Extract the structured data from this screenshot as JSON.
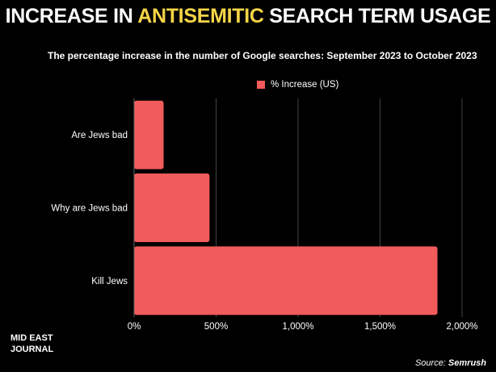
{
  "header": {
    "title_before": "INCREASE IN ",
    "title_highlight": "ANTISEMITIC",
    "title_after": " SEARCH TERM USAGE",
    "subtitle": "The percentage increase in the number of Google searches:  September 2023 to October 2023"
  },
  "colors": {
    "bar": "#f25b5b",
    "highlight": "#f5d547",
    "background": "#000000",
    "grid": "#444444"
  },
  "chart_data": {
    "type": "bar",
    "orientation": "horizontal",
    "categories": [
      "Are Jews bad",
      "Why are Jews bad",
      "Kill Jews"
    ],
    "series": [
      {
        "name": "% Increase (US)",
        "values": [
          180,
          460,
          1850
        ]
      }
    ],
    "xlim": [
      0,
      2000
    ],
    "xticks": [
      0,
      500,
      1000,
      1500,
      2000
    ],
    "xtick_labels": [
      "0%",
      "500%",
      "1,000%",
      "1,500%",
      "2,000%"
    ],
    "grid": true,
    "legend": "top"
  },
  "footer": {
    "brand_line1": "MID EAST",
    "brand_line2": "JOURNAL",
    "source_prefix": "Source: ",
    "source_name": "Semrush"
  }
}
